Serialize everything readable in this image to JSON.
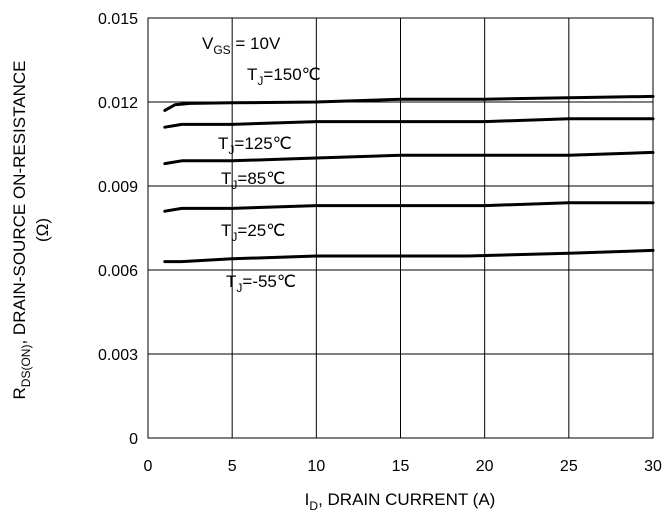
{
  "chart_data": {
    "type": "line",
    "xlabel": {
      "main": "I",
      "sub": "D",
      "rest": ", DRAIN CURRENT (A)"
    },
    "ylabel": {
      "main": "R",
      "sub": "DS(ON)",
      "rest": ",  DRAIN-SOURCE ON-RESISTANCE",
      "unit": "(Ω)"
    },
    "xlim": [
      0,
      30
    ],
    "ylim": [
      0,
      0.015
    ],
    "x_ticks": [
      "0",
      "5",
      "10",
      "15",
      "20",
      "25",
      "30"
    ],
    "x_tick_values": [
      0,
      5,
      10,
      15,
      20,
      25,
      30
    ],
    "y_ticks": [
      "0",
      "0.003",
      "0.006",
      "0.009",
      "0.012",
      "0.015"
    ],
    "y_tick_values": [
      0,
      0.003,
      0.006,
      0.009,
      0.012,
      0.015
    ],
    "grid": true,
    "condition": {
      "main": "V",
      "sub": "GS",
      "rest": " = 10V"
    },
    "series": [
      {
        "name": "TJ=150℃",
        "label_main": "T",
        "label_sub": "J",
        "label_rest": "=150℃",
        "x": [
          1,
          1.6,
          2.5,
          5,
          10,
          15,
          20,
          25,
          30
        ],
        "y": [
          0.0117,
          0.0119,
          0.01195,
          0.01197,
          0.012,
          0.0121,
          0.0121,
          0.01215,
          0.0122
        ]
      },
      {
        "name": "TJ=125℃",
        "label_main": "T",
        "label_sub": "J",
        "label_rest": "=125℃",
        "x": [
          1,
          2,
          5,
          10,
          15,
          20,
          25,
          30
        ],
        "y": [
          0.0111,
          0.0112,
          0.0112,
          0.0113,
          0.0113,
          0.0113,
          0.0114,
          0.0114
        ]
      },
      {
        "name": "TJ=85℃",
        "label_main": "T",
        "label_sub": "J",
        "label_rest": "=85℃",
        "x": [
          1,
          2,
          5,
          10,
          15,
          20,
          25,
          30
        ],
        "y": [
          0.0098,
          0.0099,
          0.0099,
          0.01,
          0.0101,
          0.0101,
          0.0101,
          0.0102
        ]
      },
      {
        "name": "TJ=25℃",
        "label_main": "T",
        "label_sub": "J",
        "label_rest": "=25℃",
        "x": [
          1,
          2,
          5,
          10,
          15,
          20,
          25,
          30
        ],
        "y": [
          0.0081,
          0.0082,
          0.0082,
          0.0083,
          0.0083,
          0.0083,
          0.0084,
          0.0084
        ]
      },
      {
        "name": "TJ=-55℃",
        "label_main": "T",
        "label_sub": "J",
        "label_rest": "=-55℃",
        "x": [
          1,
          2,
          5,
          10,
          15,
          19,
          25,
          30
        ],
        "y": [
          0.0063,
          0.0063,
          0.0064,
          0.0065,
          0.0065,
          0.0065,
          0.0066,
          0.0067
        ]
      }
    ]
  }
}
